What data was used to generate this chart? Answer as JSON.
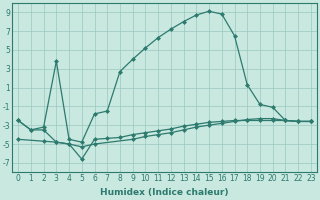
{
  "line1_x": [
    0,
    1,
    2,
    3,
    4,
    5,
    6,
    7,
    8,
    9,
    10,
    11,
    12,
    13,
    14,
    15,
    16,
    17,
    18,
    19,
    20,
    21,
    22,
    23
  ],
  "line1_y": [
    -2.5,
    -3.5,
    -3.2,
    3.8,
    -4.5,
    -4.8,
    -1.8,
    -1.5,
    2.7,
    4.0,
    5.2,
    6.3,
    7.2,
    8.0,
    8.7,
    9.1,
    8.8,
    6.5,
    1.3,
    -0.8,
    -1.1,
    -2.5,
    -2.6,
    -2.6
  ],
  "line2_x": [
    0,
    2,
    3,
    4,
    5,
    6,
    9,
    10,
    11,
    12,
    13,
    14,
    15,
    16,
    17,
    18,
    19,
    20,
    21,
    22,
    23
  ],
  "line2_y": [
    -4.5,
    -4.7,
    -4.8,
    -5.0,
    -5.3,
    -5.0,
    -4.5,
    -4.2,
    -4.0,
    -3.8,
    -3.5,
    -3.2,
    -3.0,
    -2.8,
    -2.6,
    -2.4,
    -2.3,
    -2.3,
    -2.5,
    -2.6,
    -2.6
  ],
  "line3_x": [
    0,
    1,
    2,
    3,
    4,
    5,
    6,
    7,
    8,
    9,
    10,
    11,
    12,
    13,
    14,
    15,
    16,
    17,
    18,
    19,
    20,
    21,
    22,
    23
  ],
  "line3_y": [
    -2.5,
    -3.5,
    -3.5,
    -4.8,
    -5.0,
    -6.6,
    -4.5,
    -4.4,
    -4.3,
    -4.0,
    -3.8,
    -3.6,
    -3.4,
    -3.1,
    -2.9,
    -2.7,
    -2.6,
    -2.5,
    -2.5,
    -2.5,
    -2.5,
    -2.5,
    -2.6,
    -2.6
  ],
  "line_color": "#2d7a6e",
  "bg_color": "#c8e8e0",
  "grid_color": "#9ac8c0",
  "xlabel": "Humidex (Indice chaleur)",
  "xlim": [
    -0.5,
    23.5
  ],
  "ylim": [
    -8,
    10
  ],
  "yticks": [
    -7,
    -5,
    -3,
    -1,
    1,
    3,
    5,
    7,
    9
  ],
  "xticks": [
    0,
    1,
    2,
    3,
    4,
    5,
    6,
    7,
    8,
    9,
    10,
    11,
    12,
    13,
    14,
    15,
    16,
    17,
    18,
    19,
    20,
    21,
    22,
    23
  ],
  "marker": "D",
  "markersize": 2,
  "linewidth": 0.9,
  "tick_fontsize": 5.5,
  "label_fontsize": 6.5
}
